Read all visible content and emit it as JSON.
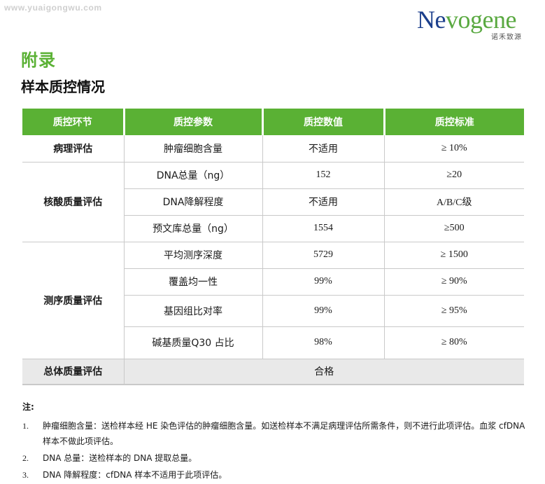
{
  "watermark": "www.yuaigongwu.com",
  "logo": {
    "word_head": "N",
    "word_mid": "e",
    "word_tail": "vogene",
    "cn": "诺禾致源",
    "brand_blue": "#1c3f8c",
    "brand_green": "#5aa941"
  },
  "appendix_title": "附录",
  "section_title": "样本质控情况",
  "accent_color": "#5ab134",
  "table": {
    "headers": [
      "质控环节",
      "质控参数",
      "质控数值",
      "质控标准"
    ],
    "pathology": {
      "category": "病理评估",
      "rows": [
        {
          "param": "肿瘤细胞含量",
          "value": "不适用",
          "standard": "≥ 10%"
        }
      ]
    },
    "nucleic": {
      "category": "核酸质量评估",
      "rows": [
        {
          "param": "DNA总量（ng）",
          "value": "152",
          "standard": "≥20"
        },
        {
          "param": "DNA降解程度",
          "value": "不适用",
          "standard": "A/B/C级"
        },
        {
          "param": "预文库总量（ng）",
          "value": "1554",
          "standard": "≥500"
        }
      ]
    },
    "sequencing": {
      "category": "测序质量评估",
      "rows": [
        {
          "param": "平均测序深度",
          "value": "5729",
          "standard": "≥ 1500"
        },
        {
          "param": "覆盖均一性",
          "value": "99%",
          "standard": "≥ 90%"
        },
        {
          "param": "基因组比对率",
          "value": "99%",
          "standard": "≥ 95%"
        },
        {
          "param": "碱基质量Q30 占比",
          "value": "98%",
          "standard": "≥ 80%"
        }
      ]
    },
    "overall": {
      "category": "总体质量评估",
      "result": "合格"
    }
  },
  "notes": {
    "title": "注:",
    "items": [
      {
        "num": "1.",
        "text": "肿瘤细胞含量：送检样本经 HE 染色评估的肿瘤细胞含量。如送检样本不满足病理评估所需条件，则不进行此项评估。血浆 cfDNA 样本不做此项评估。"
      },
      {
        "num": "2.",
        "text": "DNA 总量：送检样本的 DNA 提取总量。"
      },
      {
        "num": "3.",
        "text": "DNA 降解程度：cfDNA 样本不适用于此项评估。"
      }
    ]
  }
}
